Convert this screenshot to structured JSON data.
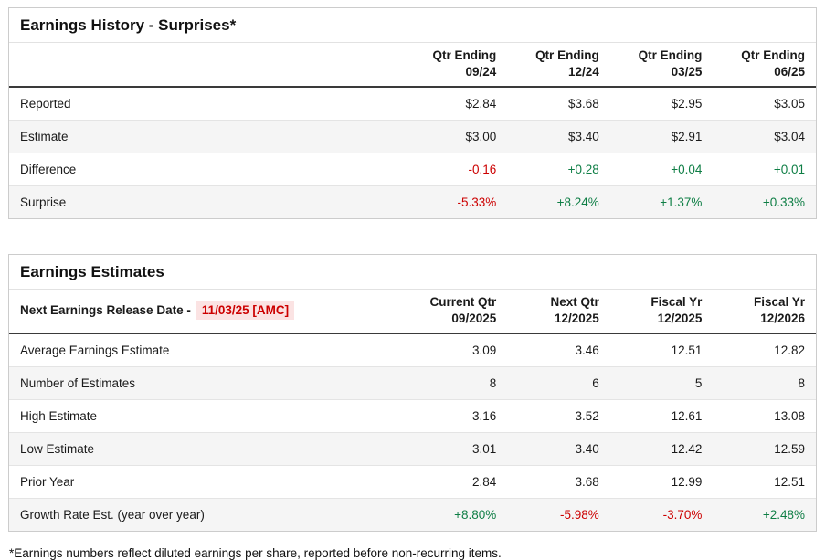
{
  "colors": {
    "positive_text": "#0e7e45",
    "negative_text": "#cc0000",
    "release_highlight_bg": "#fbe3e3",
    "shaded_row_bg": "#f5f5f5",
    "header_rule": "#3a3a3a",
    "card_border": "#cccccc"
  },
  "surprises": {
    "title": "Earnings History - Surprises*",
    "columns": [
      {
        "line1": "Qtr Ending",
        "line2": "09/24"
      },
      {
        "line1": "Qtr Ending",
        "line2": "12/24"
      },
      {
        "line1": "Qtr Ending",
        "line2": "03/25"
      },
      {
        "line1": "Qtr Ending",
        "line2": "06/25"
      }
    ],
    "rows": [
      {
        "label": "Reported",
        "values": [
          {
            "v": "$2.84"
          },
          {
            "v": "$3.68"
          },
          {
            "v": "$2.95"
          },
          {
            "v": "$3.05"
          }
        ]
      },
      {
        "label": "Estimate",
        "values": [
          {
            "v": "$3.00"
          },
          {
            "v": "$3.40"
          },
          {
            "v": "$2.91"
          },
          {
            "v": "$3.04"
          }
        ]
      },
      {
        "label": "Difference",
        "values": [
          {
            "v": "-0.16",
            "tone": "negative"
          },
          {
            "v": "+0.28",
            "tone": "positive"
          },
          {
            "v": "+0.04",
            "tone": "positive"
          },
          {
            "v": "+0.01",
            "tone": "positive"
          }
        ]
      },
      {
        "label": "Surprise",
        "values": [
          {
            "v": "-5.33%",
            "tone": "negative"
          },
          {
            "v": "+8.24%",
            "tone": "positive"
          },
          {
            "v": "+1.37%",
            "tone": "positive"
          },
          {
            "v": "+0.33%",
            "tone": "positive"
          }
        ]
      }
    ]
  },
  "estimates": {
    "title": "Earnings Estimates",
    "release_label": "Next Earnings Release Date -",
    "release_date": "11/03/25 [AMC]",
    "columns": [
      {
        "line1": "Current Qtr",
        "line2": "09/2025"
      },
      {
        "line1": "Next Qtr",
        "line2": "12/2025"
      },
      {
        "line1": "Fiscal Yr",
        "line2": "12/2025"
      },
      {
        "line1": "Fiscal Yr",
        "line2": "12/2026"
      }
    ],
    "rows": [
      {
        "label": "Average Earnings Estimate",
        "values": [
          {
            "v": "3.09"
          },
          {
            "v": "3.46"
          },
          {
            "v": "12.51"
          },
          {
            "v": "12.82"
          }
        ]
      },
      {
        "label": "Number of Estimates",
        "values": [
          {
            "v": "8"
          },
          {
            "v": "6"
          },
          {
            "v": "5"
          },
          {
            "v": "8"
          }
        ]
      },
      {
        "label": "High Estimate",
        "values": [
          {
            "v": "3.16"
          },
          {
            "v": "3.52"
          },
          {
            "v": "12.61"
          },
          {
            "v": "13.08"
          }
        ]
      },
      {
        "label": "Low Estimate",
        "values": [
          {
            "v": "3.01"
          },
          {
            "v": "3.40"
          },
          {
            "v": "12.42"
          },
          {
            "v": "12.59"
          }
        ]
      },
      {
        "label": "Prior Year",
        "values": [
          {
            "v": "2.84"
          },
          {
            "v": "3.68"
          },
          {
            "v": "12.99"
          },
          {
            "v": "12.51"
          }
        ]
      },
      {
        "label": "Growth Rate Est. (year over year)",
        "values": [
          {
            "v": "+8.80%",
            "tone": "positive"
          },
          {
            "v": "-5.98%",
            "tone": "negative"
          },
          {
            "v": "-3.70%",
            "tone": "negative"
          },
          {
            "v": "+2.48%",
            "tone": "positive"
          }
        ]
      }
    ]
  },
  "footnote": "*Earnings numbers reflect diluted earnings per share, reported before non-recurring items."
}
